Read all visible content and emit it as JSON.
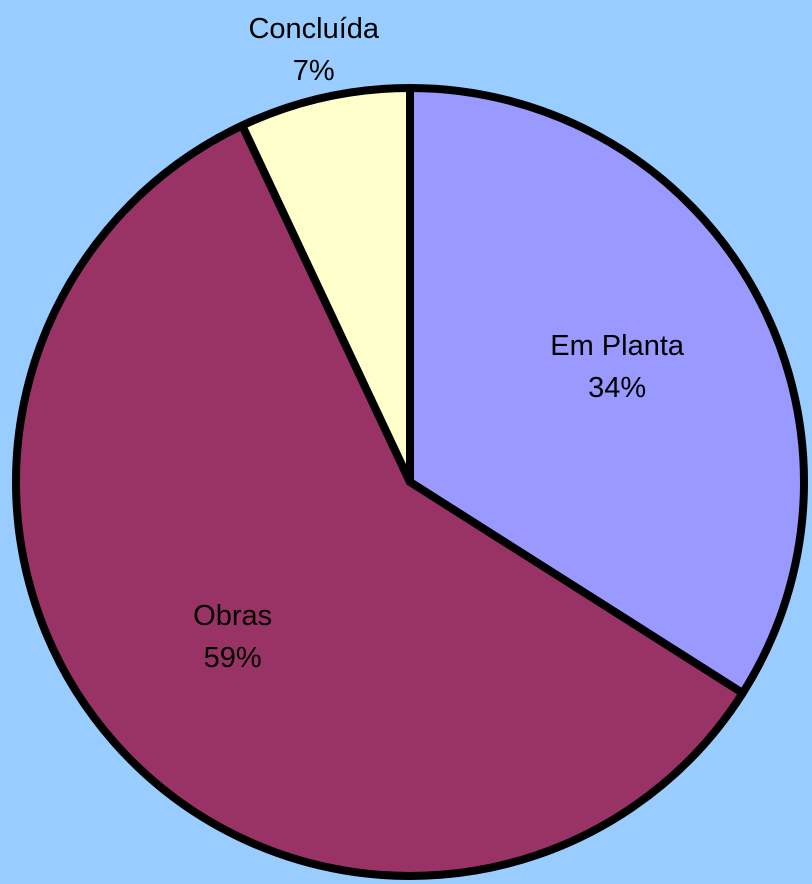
{
  "chart_data": {
    "type": "pie",
    "categories": [
      "Em Planta",
      "Obras",
      "Concluída"
    ],
    "values": [
      34,
      59,
      7
    ],
    "value_labels": [
      "34%",
      "59%",
      "7%"
    ],
    "colors": [
      "#9999ff",
      "#993366",
      "#ffffcc"
    ]
  }
}
